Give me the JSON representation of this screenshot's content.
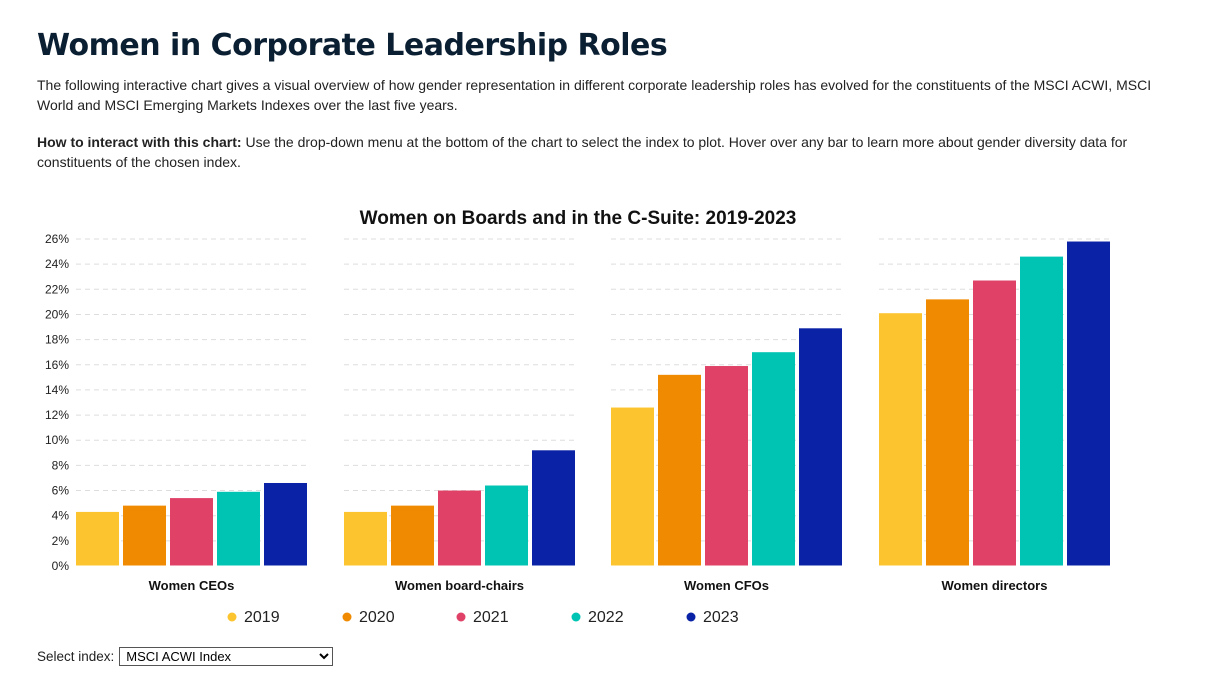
{
  "page": {
    "title": "Women in Corporate Leadership Roles",
    "intro": "The following interactive chart gives a visual overview of how gender representation in different corporate leadership roles has evolved for the constituents of the MSCI ACWI, MSCI World and MSCI Emerging Markets Indexes over the last five years.",
    "howto_label": "How to interact with this chart:",
    "howto_text": " Use the drop-down menu at the bottom of the chart to select the index to plot. Hover over any bar to learn more about gender diversity data for constituents of the chosen index."
  },
  "select": {
    "label": "Select index:",
    "value": "MSCI ACWI Index",
    "options": [
      "MSCI ACWI Index"
    ]
  },
  "chart_data": {
    "type": "bar",
    "title": "Women on Boards and in the C-Suite: 2019-2023",
    "xlabel": "",
    "ylabel": "",
    "categories": [
      "Women CEOs",
      "Women board-chairs",
      "Women CFOs",
      "Women directors"
    ],
    "series": [
      {
        "name": "2019",
        "color": "#fcc52f",
        "values": [
          4.3,
          4.3,
          12.6,
          20.1
        ]
      },
      {
        "name": "2020",
        "color": "#f08a00",
        "values": [
          4.8,
          4.8,
          15.2,
          21.2
        ]
      },
      {
        "name": "2021",
        "color": "#e04267",
        "values": [
          5.4,
          6.0,
          15.9,
          22.7
        ]
      },
      {
        "name": "2022",
        "color": "#00c4b3",
        "values": [
          5.9,
          6.4,
          17.0,
          24.6
        ]
      },
      {
        "name": "2023",
        "color": "#0a23a6",
        "values": [
          6.6,
          9.2,
          18.9,
          25.8
        ]
      }
    ],
    "ylim": [
      0,
      26
    ],
    "yticks": [
      "0%",
      "2%",
      "4%",
      "6%",
      "8%",
      "10%",
      "12%",
      "14%",
      "16%",
      "18%",
      "20%",
      "22%",
      "24%",
      "26%"
    ],
    "grid": true,
    "legend_position": "bottom"
  }
}
